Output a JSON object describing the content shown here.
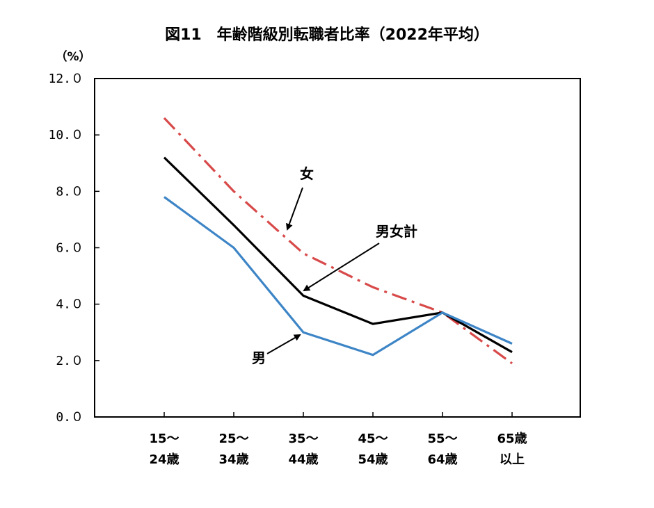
{
  "chart_data": {
    "type": "line",
    "title": "図11　年齢階級別転職者比率（2022年平均）",
    "ylabel_unit": "（%）",
    "ylim": [
      0,
      12
    ],
    "yticks": [
      "12.０",
      "10.０",
      "8.０",
      "6.０",
      "4.０",
      "2.０",
      "0.０"
    ],
    "yticks_values": [
      12,
      10,
      8,
      6,
      4,
      2,
      0
    ],
    "categories": [
      [
        "15～",
        "24歳"
      ],
      [
        "25～",
        "34歳"
      ],
      [
        "35～",
        "44歳"
      ],
      [
        "45～",
        "54歳"
      ],
      [
        "55～",
        "64歳"
      ],
      [
        "65歳",
        "以上"
      ]
    ],
    "series": [
      {
        "name": "女",
        "values": [
          10.6,
          8.0,
          5.8,
          4.6,
          3.7,
          1.9
        ],
        "color": "#d84a4a",
        "style": "dashdot"
      },
      {
        "name": "男女計",
        "values": [
          9.2,
          6.8,
          4.3,
          3.3,
          3.7,
          2.3
        ],
        "color": "#000000",
        "style": "solid"
      },
      {
        "name": "男",
        "values": [
          7.8,
          6.0,
          3.0,
          2.2,
          3.7,
          2.6
        ],
        "color": "#3d85c6",
        "style": "solid"
      }
    ],
    "grid": false,
    "legend": "annotations with arrows"
  }
}
